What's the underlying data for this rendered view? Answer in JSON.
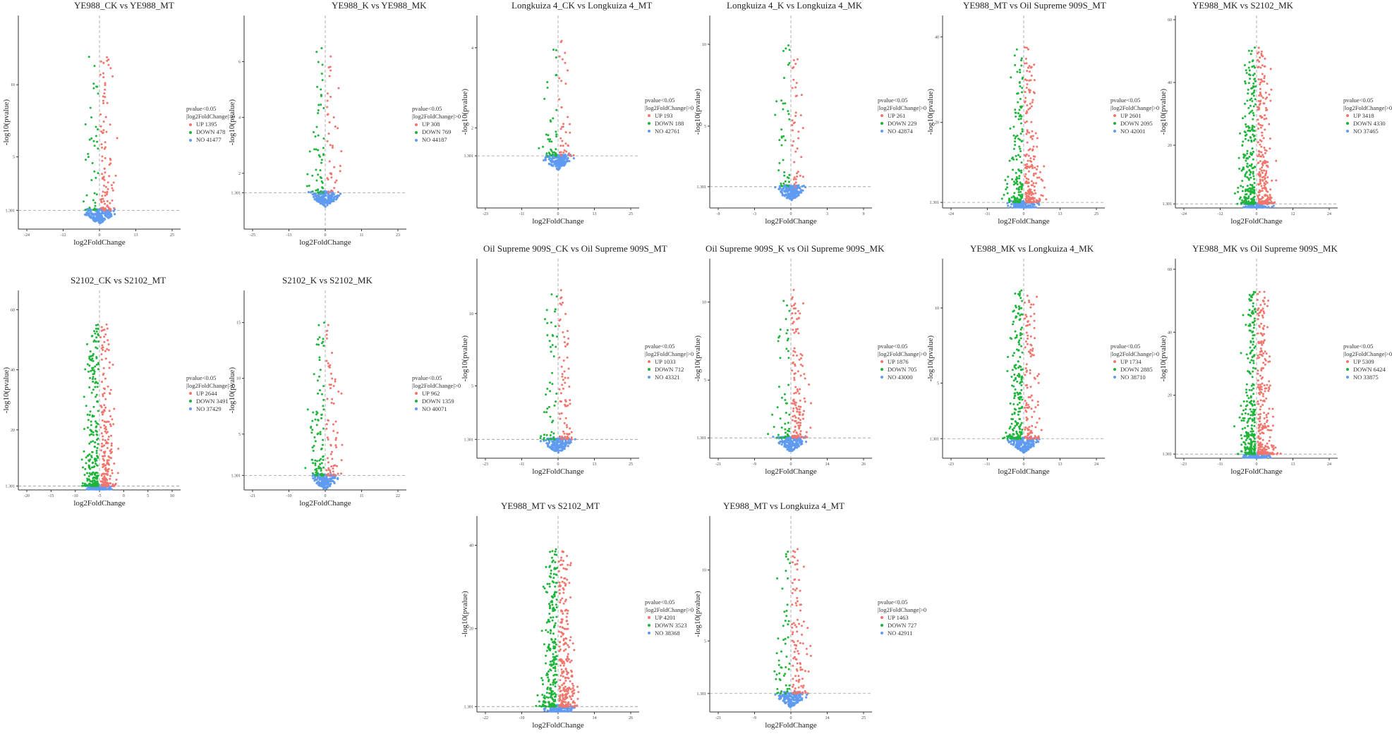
{
  "chart_data": [
    {
      "type": "scatter",
      "title": "YE988_CK vs YE988_MT",
      "xlabel": "log2FoldChange",
      "ylabel": "-log10(pvalue)",
      "xticks": [
        "-24",
        "-12",
        "0",
        "13",
        "25"
      ],
      "yticks": [
        "1.301",
        "5",
        "10"
      ],
      "ylim": [
        0,
        14.5
      ],
      "threshold_y": 1.301,
      "legend": {
        "title1": "pvalue<0.05",
        "title2": "|log2FoldChange|>0",
        "entries": [
          {
            "label": "UP",
            "count": 1395
          },
          {
            "label": "DOWN",
            "count": 478
          },
          {
            "label": "NO",
            "count": 41477
          }
        ]
      }
    },
    {
      "type": "scatter",
      "title": "YE988_K vs YE988_MK",
      "xlabel": "log2FoldChange",
      "ylabel": "-log10(pvalue)",
      "xticks": [
        "-25",
        "-13",
        "0",
        "11",
        "23"
      ],
      "yticks": [
        "1.301",
        "2",
        "4",
        "6"
      ],
      "ylim": [
        0,
        7.5
      ],
      "threshold_y": 1.301,
      "legend": {
        "title1": "pvalue<0.05",
        "title2": "|log2FoldChange|>0",
        "entries": [
          {
            "label": "UP",
            "count": 308
          },
          {
            "label": "DOWN",
            "count": 769
          },
          {
            "label": "NO",
            "count": 44187
          }
        ]
      }
    },
    {
      "type": "scatter",
      "title": "Longkuiza 4_CK vs Longkuiza 4_MT",
      "xlabel": "log2FoldChange",
      "ylabel": "-log10(pvalue)",
      "xticks": [
        "-23",
        "-11",
        "0",
        "13",
        "25"
      ],
      "yticks": [
        "1.301",
        "2",
        "4"
      ],
      "ylim": [
        0,
        4.7
      ],
      "threshold_y": 1.301,
      "legend": {
        "title1": "pvalue<0.05",
        "title2": "|log2FoldChange|>0",
        "entries": [
          {
            "label": "UP",
            "count": 193
          },
          {
            "label": "DOWN",
            "count": 188
          },
          {
            "label": "NO",
            "count": 42761
          }
        ]
      }
    },
    {
      "type": "scatter",
      "title": "Longkuiza 4_K vs Longkuiza 4_MK",
      "xlabel": "log2FoldChange",
      "ylabel": "-log10(pvalue)",
      "xticks": [
        "-9",
        "-3",
        "0",
        "3",
        "9"
      ],
      "yticks": [
        "1.301",
        "5",
        "10"
      ],
      "ylim": [
        0,
        11.5
      ],
      "threshold_y": 1.301,
      "legend": {
        "title1": "pvalue<0.05",
        "title2": "|log2FoldChange|>0",
        "entries": [
          {
            "label": "UP",
            "count": 261
          },
          {
            "label": "DOWN",
            "count": 229
          },
          {
            "label": "NO",
            "count": 42874
          }
        ]
      }
    },
    {
      "type": "scatter",
      "title": "YE988_MT vs Oil Supreme 909S_MT",
      "xlabel": "log2FoldChange",
      "ylabel": "-log10(pvalue)",
      "xticks": [
        "-24",
        "-11",
        "0",
        "13",
        "25"
      ],
      "yticks": [
        "1.301",
        "20",
        "40"
      ],
      "ylim": [
        0,
        44
      ],
      "threshold_y": 1.301,
      "legend": {
        "title1": "pvalue<0.05",
        "title2": "|log2FoldChange|>0",
        "entries": [
          {
            "label": "UP",
            "count": 2601
          },
          {
            "label": "DOWN",
            "count": 2095
          },
          {
            "label": "NO",
            "count": 42001
          }
        ]
      }
    },
    {
      "type": "scatter",
      "title": "YE988_MK vs S2102_MK",
      "xlabel": "log2FoldChange",
      "ylabel": "-log10(pvalue)",
      "xticks": [
        "-24",
        "-12",
        "0",
        "12",
        "24"
      ],
      "yticks": [
        "1.301",
        "20",
        "40",
        "60"
      ],
      "ylim": [
        0,
        60
      ],
      "threshold_y": 1.301,
      "legend": {
        "title1": "pvalue<0.05",
        "title2": "|log2FoldChange|>0",
        "entries": [
          {
            "label": "UP",
            "count": 3418
          },
          {
            "label": "DOWN",
            "count": 4330
          },
          {
            "label": "NO",
            "count": 37465
          }
        ]
      }
    },
    {
      "type": "scatter",
      "title": "S2102_CK vs S2102_MT",
      "xlabel": "log2FoldChange",
      "ylabel": "-log10(pvalue)",
      "xticks": [
        "-20",
        "-15",
        "-10",
        "-5",
        "0",
        "5",
        "10"
      ],
      "yticks": [
        "1.301",
        "20",
        "40",
        "60"
      ],
      "ylim": [
        0,
        65
      ],
      "threshold_y": 1.301,
      "legend": {
        "title1": "pvalue<0.05",
        "title2": "|log2FoldChange|>0",
        "entries": [
          {
            "label": "UP",
            "count": 2644
          },
          {
            "label": "DOWN",
            "count": 3491
          },
          {
            "label": "NO",
            "count": 37429
          }
        ]
      }
    },
    {
      "type": "scatter",
      "title": "S2102_K vs S2102_MK",
      "xlabel": "log2FoldChange",
      "ylabel": "-log10(pvalue)",
      "xticks": [
        "-21",
        "-10",
        "0",
        "11",
        "22"
      ],
      "yticks": [
        "1.301",
        "5",
        "10",
        "15"
      ],
      "ylim": [
        0,
        17.5
      ],
      "threshold_y": 1.301,
      "legend": {
        "title1": "pvalue<0.05",
        "title2": "|log2FoldChange|>0",
        "entries": [
          {
            "label": "UP",
            "count": 962
          },
          {
            "label": "DOWN",
            "count": 1359
          },
          {
            "label": "NO",
            "count": 40071
          }
        ]
      }
    },
    {
      "type": "scatter",
      "title": "Oil Supreme 909S_CK vs Oil Supreme 909S_MT",
      "xlabel": "log2FoldChange",
      "ylabel": "-log10(pvalue)",
      "xticks": [
        "-23",
        "-11",
        "0",
        "13",
        "25"
      ],
      "yticks": [
        "1.301",
        "5",
        "10"
      ],
      "ylim": [
        0,
        13.5
      ],
      "threshold_y": 1.301,
      "legend": {
        "title1": "pvalue<0.05",
        "title2": "|log2FoldChange|>0",
        "entries": [
          {
            "label": "UP",
            "count": 1033
          },
          {
            "label": "DOWN",
            "count": 712
          },
          {
            "label": "NO",
            "count": 43321
          }
        ]
      }
    },
    {
      "type": "scatter",
      "title": "Oil Supreme 909S_K vs Oil Supreme 909S_MK",
      "xlabel": "log2FoldChange",
      "ylabel": "-log10(pvalue)",
      "xticks": [
        "-21",
        "-9",
        "0",
        "14",
        "26"
      ],
      "yticks": [
        "1.301",
        "5",
        "10"
      ],
      "ylim": [
        0,
        12.5
      ],
      "threshold_y": 1.301,
      "legend": {
        "title1": "pvalue<0.05",
        "title2": "|log2FoldChange|>0",
        "entries": [
          {
            "label": "UP",
            "count": 1876
          },
          {
            "label": "DOWN",
            "count": 705
          },
          {
            "label": "NO",
            "count": 43000
          }
        ]
      }
    },
    {
      "type": "scatter",
      "title": "YE988_MK vs Longkuiza 4_MK",
      "xlabel": "log2FoldChange",
      "ylabel": "-log10(pvalue)",
      "xticks": [
        "-23",
        "-11",
        "0",
        "13",
        "24"
      ],
      "yticks": [
        "1.301",
        "5",
        "10"
      ],
      "ylim": [
        0,
        13
      ],
      "threshold_y": 1.301,
      "legend": {
        "title1": "pvalue<0.05",
        "title2": "|log2FoldChange|>0",
        "entries": [
          {
            "label": "UP",
            "count": 1734
          },
          {
            "label": "DOWN",
            "count": 2885
          },
          {
            "label": "NO",
            "count": 38710
          }
        ]
      }
    },
    {
      "type": "scatter",
      "title": "YE988_MK vs Oil Supreme 909S_MK",
      "xlabel": "log2FoldChange",
      "ylabel": "-log10(pvalue)",
      "xticks": [
        "-23",
        "-11",
        "0",
        "13",
        "24"
      ],
      "yticks": [
        "1.301",
        "20",
        "40",
        "60"
      ],
      "ylim": [
        0,
        62
      ],
      "threshold_y": 1.301,
      "legend": {
        "title1": "pvalue<0.05",
        "title2": "|log2FoldChange|>0",
        "entries": [
          {
            "label": "UP",
            "count": 5309
          },
          {
            "label": "DOWN",
            "count": 6424
          },
          {
            "label": "NO",
            "count": 33875
          }
        ]
      }
    },
    {
      "type": "scatter",
      "title": "YE988_MT vs S2102_MT",
      "xlabel": "log2FoldChange",
      "ylabel": "-log10(pvalue)",
      "xticks": [
        "-22",
        "-10",
        "0",
        "14",
        "26"
      ],
      "yticks": [
        "1.301",
        "20",
        "40"
      ],
      "ylim": [
        0,
        46
      ],
      "threshold_y": 1.301,
      "legend": {
        "title1": "pvalue<0.05",
        "title2": "|log2FoldChange|>0",
        "entries": [
          {
            "label": "UP",
            "count": 4201
          },
          {
            "label": "DOWN",
            "count": 3523
          },
          {
            "label": "NO",
            "count": 38368
          }
        ]
      }
    },
    {
      "type": "scatter",
      "title": "YE988_MT vs Longkuiza 4_MT",
      "xlabel": "log2FoldChange",
      "ylabel": "-log10(pvalue)",
      "xticks": [
        "-21",
        "-9",
        "0",
        "14",
        "25"
      ],
      "yticks": [
        "1.301",
        "5",
        "10"
      ],
      "ylim": [
        0,
        13.5
      ],
      "threshold_y": 1.301,
      "legend": {
        "title1": "pvalue<0.05",
        "title2": "|log2FoldChange|>0",
        "entries": [
          {
            "label": "UP",
            "count": 1463
          },
          {
            "label": "DOWN",
            "count": 727
          },
          {
            "label": "NO",
            "count": 42911
          }
        ]
      }
    }
  ],
  "colors": {
    "up": "#f0766d",
    "down": "#1fb43a",
    "no": "#5f9bf0",
    "axis": "#333333",
    "threshold": "#999999"
  }
}
